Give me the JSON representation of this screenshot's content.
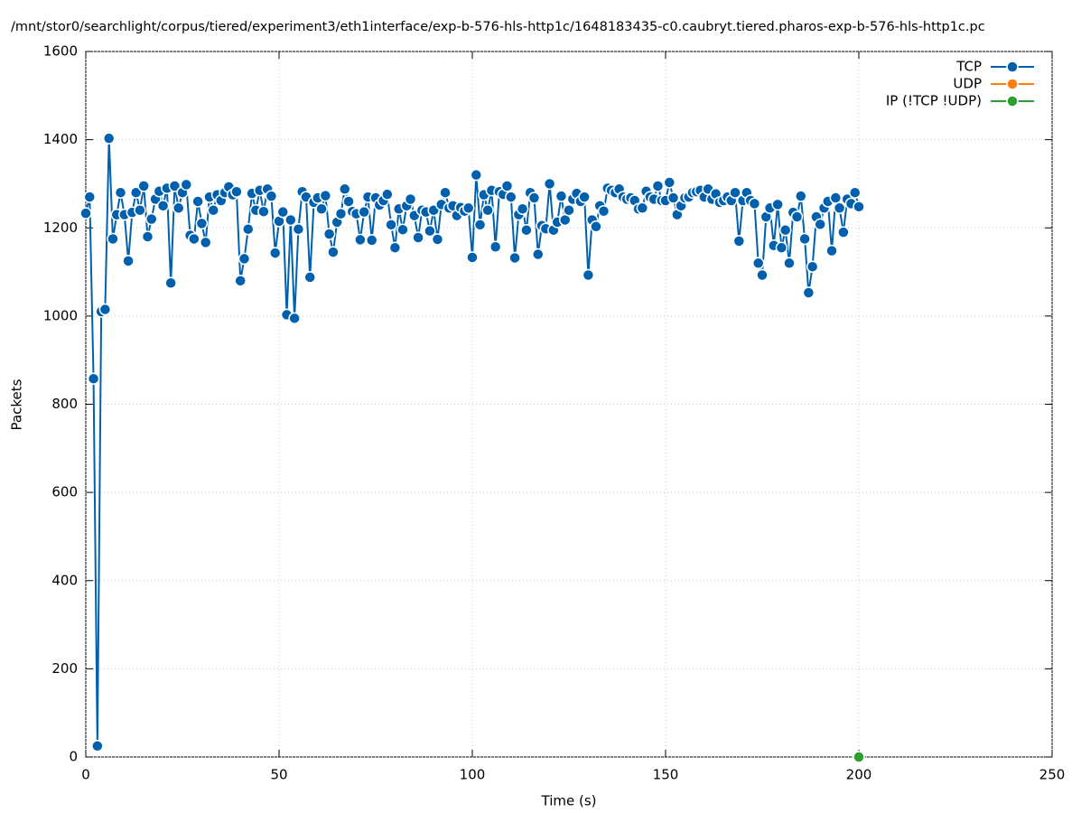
{
  "chart_data": {
    "type": "line",
    "title": "/mnt/stor0/searchlight/corpus/tiered/experiment3/eth1interface/exp-b-576-hls-http1c/1648183435-c0.caubryt.tiered.pharos-exp-b-576-hls-http1c.pc",
    "x_label": "Time (s)",
    "y_label": "Packets",
    "xlim": [
      0,
      250
    ],
    "xticks": [
      0,
      50,
      100,
      150,
      200,
      250
    ],
    "ylim": [
      0,
      1600
    ],
    "yticks": [
      0,
      200,
      400,
      600,
      800,
      1000,
      1200,
      1400,
      1600
    ],
    "grid": true,
    "legend": "top-right",
    "series": [
      {
        "name": "TCP",
        "color": "#0060ad",
        "x": [
          0,
          1,
          2,
          3,
          4,
          5,
          6,
          7,
          8,
          9,
          10,
          11,
          12,
          13,
          14,
          15,
          16,
          17,
          18,
          19,
          20,
          21,
          22,
          23,
          24,
          25,
          26,
          27,
          28,
          29,
          30,
          31,
          32,
          33,
          34,
          35,
          36,
          37,
          38,
          39,
          40,
          41,
          42,
          43,
          44,
          45,
          46,
          47,
          48,
          49,
          50,
          51,
          52,
          53,
          54,
          55,
          56,
          57,
          58,
          59,
          60,
          61,
          62,
          63,
          64,
          65,
          66,
          67,
          68,
          69,
          70,
          71,
          72,
          73,
          74,
          75,
          76,
          77,
          78,
          79,
          80,
          81,
          82,
          83,
          84,
          85,
          86,
          87,
          88,
          89,
          90,
          91,
          92,
          93,
          94,
          95,
          96,
          97,
          98,
          99,
          100,
          101,
          102,
          103,
          104,
          105,
          106,
          107,
          108,
          109,
          110,
          111,
          112,
          113,
          114,
          115,
          116,
          117,
          118,
          119,
          120,
          121,
          122,
          123,
          124,
          125,
          126,
          127,
          128,
          129,
          130,
          131,
          132,
          133,
          134,
          135,
          136,
          137,
          138,
          139,
          140,
          141,
          142,
          143,
          144,
          145,
          146,
          147,
          148,
          149,
          150,
          151,
          152,
          153,
          154,
          155,
          156,
          157,
          158,
          159,
          160,
          161,
          162,
          163,
          164,
          165,
          166,
          167,
          168,
          169,
          170,
          171,
          172,
          173,
          174,
          175,
          176,
          177,
          178,
          179,
          180,
          181,
          182,
          183,
          184,
          185,
          186,
          187,
          188,
          189,
          190,
          191,
          192,
          193,
          194,
          195,
          196,
          197,
          198,
          199,
          200
        ],
        "values": [
          1233,
          1270,
          858,
          25,
          1010,
          1015,
          1403,
          1175,
          1230,
          1280,
          1230,
          1125,
          1235,
          1280,
          1240,
          1295,
          1180,
          1220,
          1265,
          1283,
          1250,
          1290,
          1075,
          1295,
          1245,
          1280,
          1298,
          1183,
          1175,
          1260,
          1210,
          1167,
          1270,
          1240,
          1275,
          1262,
          1280,
          1293,
          1275,
          1282,
          1080,
          1130,
          1197,
          1278,
          1240,
          1285,
          1237,
          1288,
          1272,
          1143,
          1215,
          1236,
          1003,
          1218,
          995,
          1197,
          1282,
          1270,
          1088,
          1258,
          1268,
          1243,
          1273,
          1186,
          1145,
          1213,
          1232,
          1288,
          1260,
          1237,
          1232,
          1173,
          1236,
          1270,
          1172,
          1268,
          1252,
          1262,
          1276,
          1207,
          1155,
          1243,
          1196,
          1250,
          1265,
          1228,
          1178,
          1240,
          1236,
          1193,
          1240,
          1174,
          1253,
          1280,
          1245,
          1250,
          1228,
          1246,
          1238,
          1245,
          1133,
          1320,
          1207,
          1275,
          1240,
          1285,
          1157,
          1282,
          1276,
          1295,
          1270,
          1132,
          1230,
          1243,
          1195,
          1280,
          1268,
          1140,
          1205,
          1198,
          1300,
          1195,
          1213,
          1272,
          1218,
          1240,
          1265,
          1278,
          1260,
          1270,
          1093,
          1218,
          1203,
          1250,
          1238,
          1290,
          1285,
          1280,
          1288,
          1270,
          1265,
          1268,
          1262,
          1243,
          1245,
          1283,
          1270,
          1265,
          1295,
          1262,
          1262,
          1303,
          1268,
          1230,
          1250,
          1268,
          1270,
          1280,
          1282,
          1285,
          1270,
          1288,
          1265,
          1277,
          1258,
          1262,
          1270,
          1262,
          1280,
          1170,
          1262,
          1280,
          1262,
          1255,
          1120,
          1093,
          1225,
          1245,
          1160,
          1253,
          1155,
          1195,
          1120,
          1235,
          1225,
          1272,
          1175,
          1053,
          1112,
          1225,
          1208,
          1245,
          1260,
          1148,
          1268,
          1245,
          1190,
          1265,
          1255,
          1280,
          1248
        ]
      },
      {
        "name": "UDP",
        "color": "#ff7f0e",
        "x": [],
        "values": []
      },
      {
        "name": "IP (!TCP  !UDP)",
        "color": "#2ca02c",
        "x": [
          200
        ],
        "values": [
          0
        ]
      }
    ]
  }
}
